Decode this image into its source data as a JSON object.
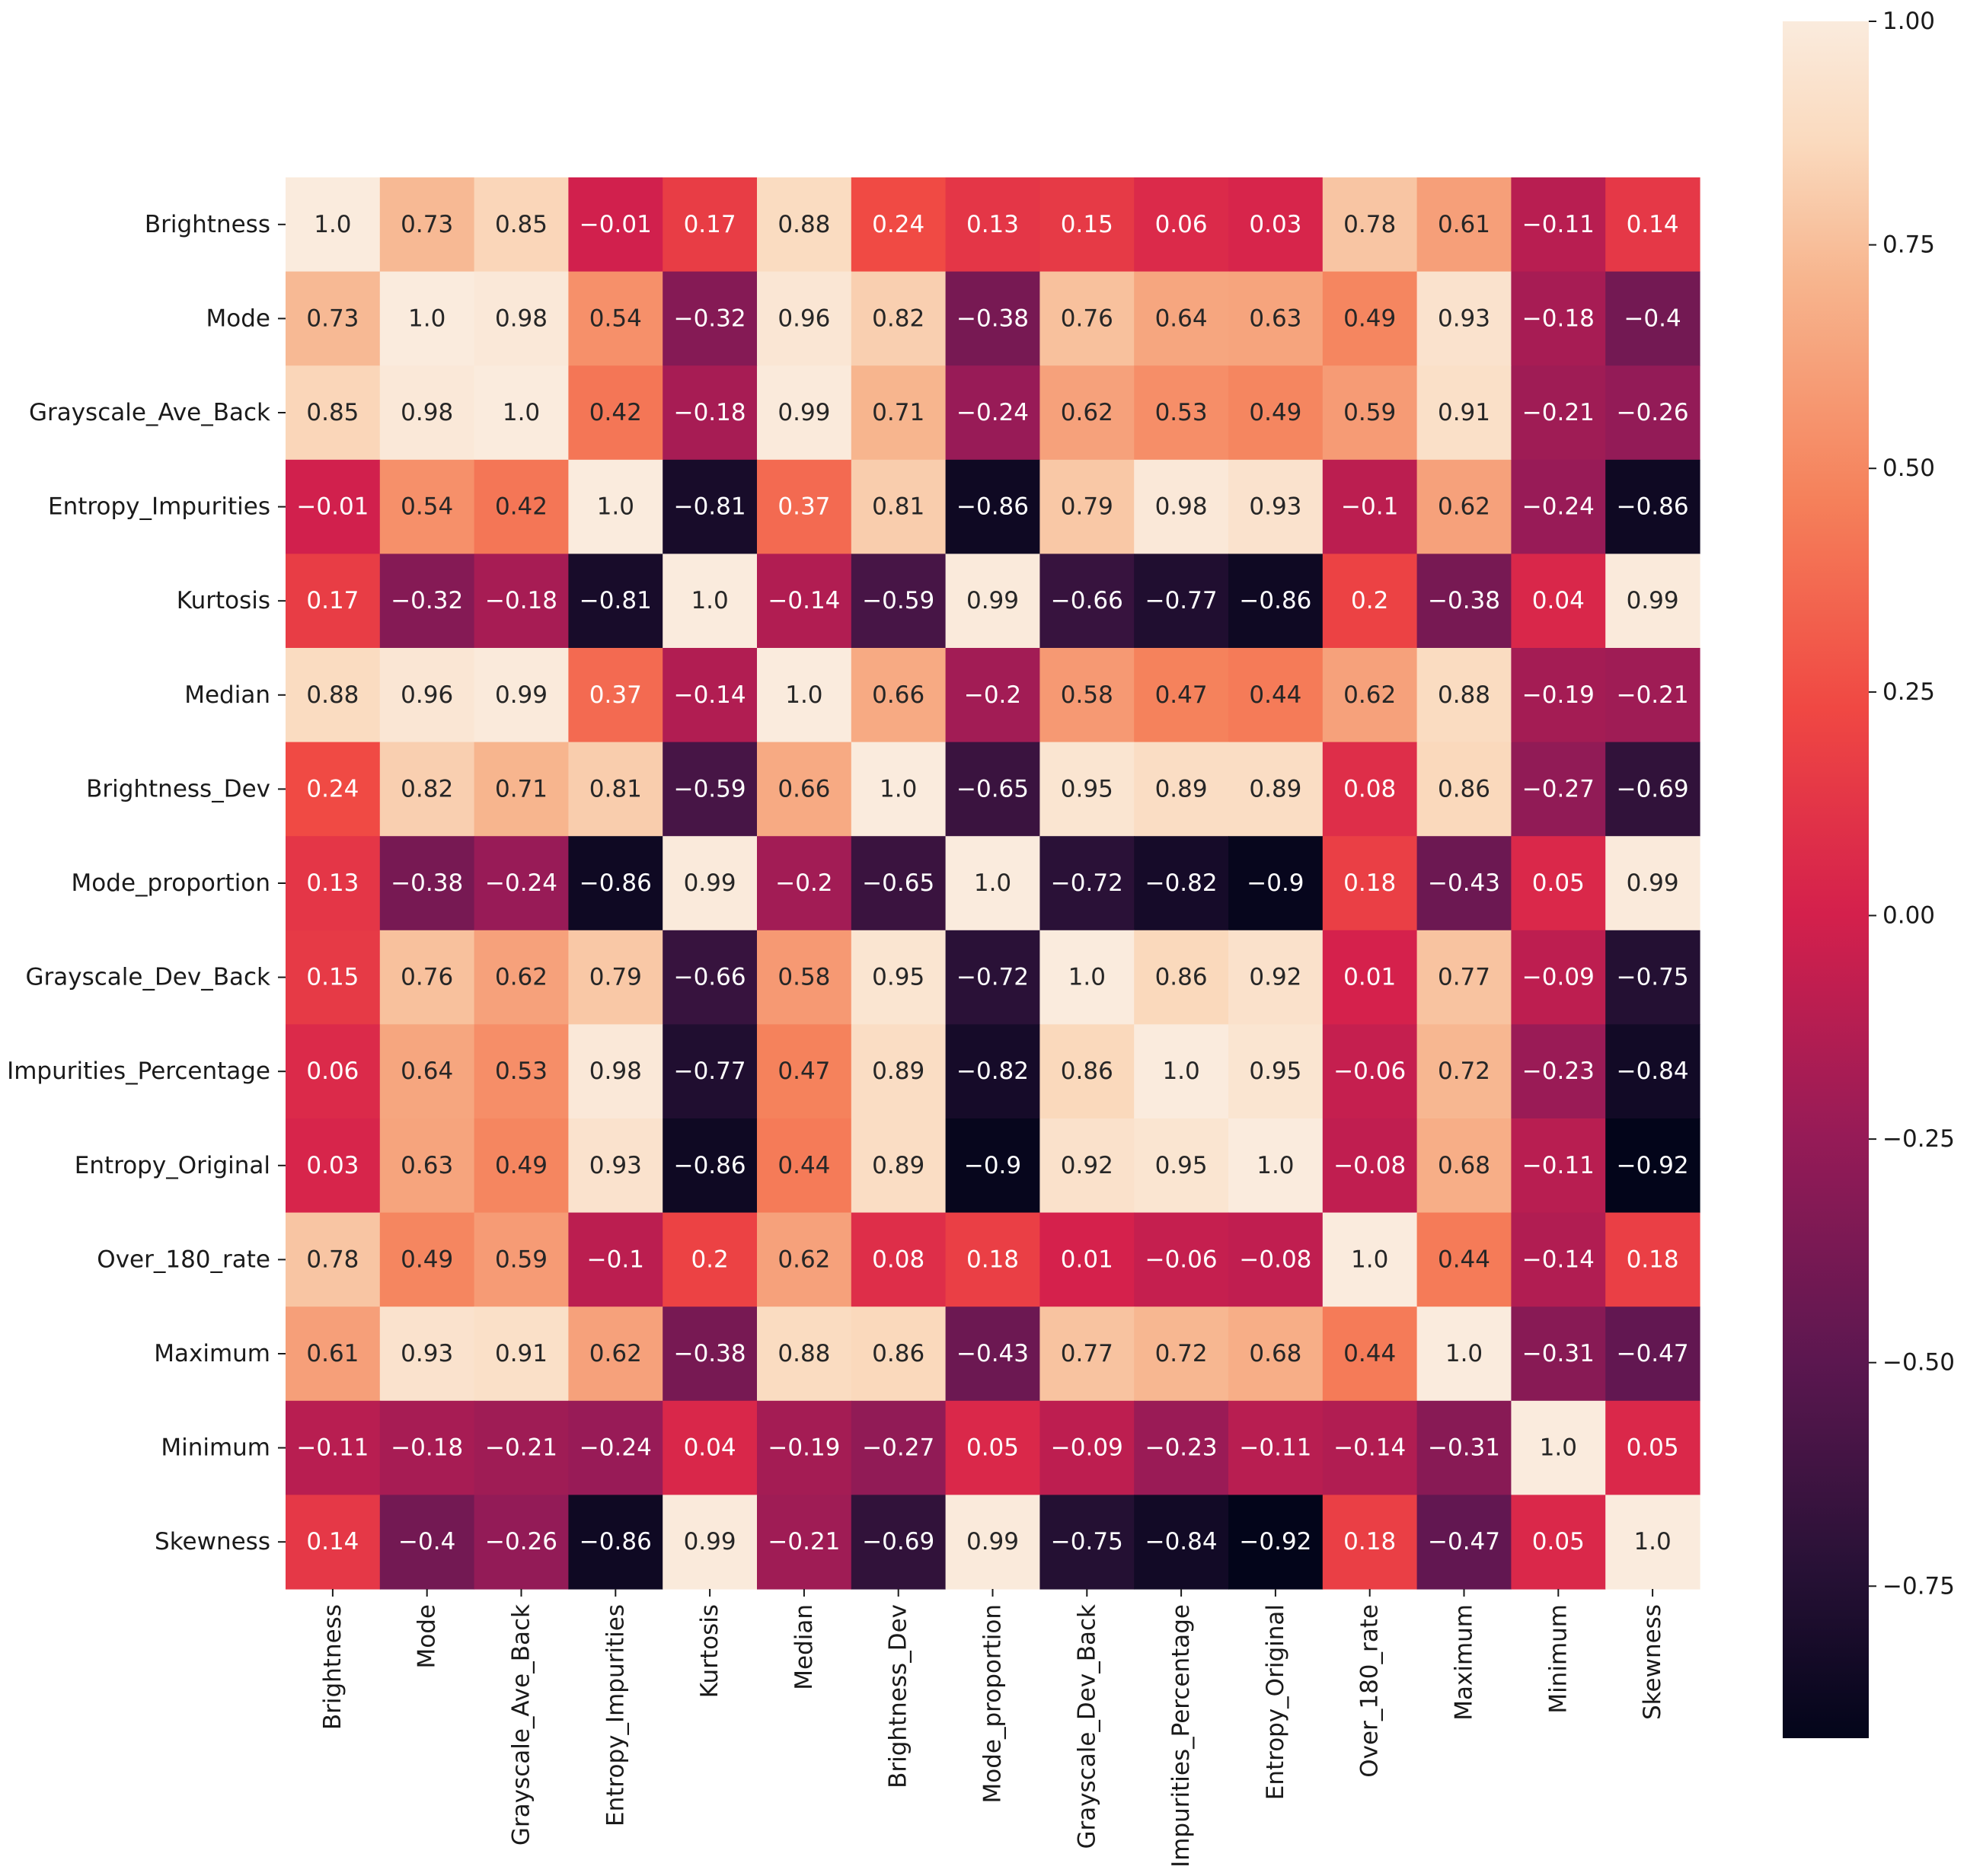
{
  "chart_data": {
    "type": "heatmap",
    "title": "",
    "xlabel": "",
    "ylabel": "",
    "labels": [
      "Brightness",
      "Mode",
      "Grayscale_Ave_Back",
      "Entropy_Impurities",
      "Kurtosis",
      "Median",
      "Brightness_Dev",
      "Mode_proportion",
      "Grayscale_Dev_Back",
      "Impurities_Percentage",
      "Entropy_Original",
      "Over_180_rate",
      "Maximum",
      "Minimum",
      "Skewness"
    ],
    "values": [
      [
        1.0,
        0.73,
        0.85,
        -0.01,
        0.17,
        0.88,
        0.24,
        0.13,
        0.15,
        0.06,
        0.03,
        0.78,
        0.61,
        -0.11,
        0.14
      ],
      [
        0.73,
        1.0,
        0.98,
        0.54,
        -0.32,
        0.96,
        0.82,
        -0.38,
        0.76,
        0.64,
        0.63,
        0.49,
        0.93,
        -0.18,
        -0.4
      ],
      [
        0.85,
        0.98,
        1.0,
        0.42,
        -0.18,
        0.99,
        0.71,
        -0.24,
        0.62,
        0.53,
        0.49,
        0.59,
        0.91,
        -0.21,
        -0.26
      ],
      [
        -0.01,
        0.54,
        0.42,
        1.0,
        -0.81,
        0.37,
        0.81,
        -0.86,
        0.79,
        0.98,
        0.93,
        -0.1,
        0.62,
        -0.24,
        -0.86
      ],
      [
        0.17,
        -0.32,
        -0.18,
        -0.81,
        1.0,
        -0.14,
        -0.59,
        0.99,
        -0.66,
        -0.77,
        -0.86,
        0.2,
        -0.38,
        0.04,
        0.99
      ],
      [
        0.88,
        0.96,
        0.99,
        0.37,
        -0.14,
        1.0,
        0.66,
        -0.2,
        0.58,
        0.47,
        0.44,
        0.62,
        0.88,
        -0.19,
        -0.21
      ],
      [
        0.24,
        0.82,
        0.71,
        0.81,
        -0.59,
        0.66,
        1.0,
        -0.65,
        0.95,
        0.89,
        0.89,
        0.08,
        0.86,
        -0.27,
        -0.69
      ],
      [
        0.13,
        -0.38,
        -0.24,
        -0.86,
        0.99,
        -0.2,
        -0.65,
        1.0,
        -0.72,
        -0.82,
        -0.9,
        0.18,
        -0.43,
        0.05,
        0.99
      ],
      [
        0.15,
        0.76,
        0.62,
        0.79,
        -0.66,
        0.58,
        0.95,
        -0.72,
        1.0,
        0.86,
        0.92,
        0.01,
        0.77,
        -0.09,
        -0.75
      ],
      [
        0.06,
        0.64,
        0.53,
        0.98,
        -0.77,
        0.47,
        0.89,
        -0.82,
        0.86,
        1.0,
        0.95,
        -0.06,
        0.72,
        -0.23,
        -0.84
      ],
      [
        0.03,
        0.63,
        0.49,
        0.93,
        -0.86,
        0.44,
        0.89,
        -0.9,
        0.92,
        0.95,
        1.0,
        -0.08,
        0.68,
        -0.11,
        -0.92
      ],
      [
        0.78,
        0.49,
        0.59,
        -0.1,
        0.2,
        0.62,
        0.08,
        0.18,
        0.01,
        -0.06,
        -0.08,
        1.0,
        0.44,
        -0.14,
        0.18
      ],
      [
        0.61,
        0.93,
        0.91,
        0.62,
        -0.38,
        0.88,
        0.86,
        -0.43,
        0.77,
        0.72,
        0.68,
        0.44,
        1.0,
        -0.31,
        -0.47
      ],
      [
        -0.11,
        -0.18,
        -0.21,
        -0.24,
        0.04,
        -0.19,
        -0.27,
        0.05,
        -0.09,
        -0.23,
        -0.11,
        -0.14,
        -0.31,
        1.0,
        0.05
      ],
      [
        0.14,
        -0.4,
        -0.26,
        -0.86,
        0.99,
        -0.21,
        -0.69,
        0.99,
        -0.75,
        -0.84,
        -0.92,
        0.18,
        -0.47,
        0.05,
        1.0
      ]
    ],
    "value_labels": [
      [
        "1.0",
        "0.73",
        "0.85",
        "−0.01",
        "0.17",
        "0.88",
        "0.24",
        "0.13",
        "0.15",
        "0.06",
        "0.03",
        "0.78",
        "0.61",
        "−0.11",
        "0.14"
      ],
      [
        "0.73",
        "1.0",
        "0.98",
        "0.54",
        "−0.32",
        "0.96",
        "0.82",
        "−0.38",
        "0.76",
        "0.64",
        "0.63",
        "0.49",
        "0.93",
        "−0.18",
        "−0.4"
      ],
      [
        "0.85",
        "0.98",
        "1.0",
        "0.42",
        "−0.18",
        "0.99",
        "0.71",
        "−0.24",
        "0.62",
        "0.53",
        "0.49",
        "0.59",
        "0.91",
        "−0.21",
        "−0.26"
      ],
      [
        "−0.01",
        "0.54",
        "0.42",
        "1.0",
        "−0.81",
        "0.37",
        "0.81",
        "−0.86",
        "0.79",
        "0.98",
        "0.93",
        "−0.1",
        "0.62",
        "−0.24",
        "−0.86"
      ],
      [
        "0.17",
        "−0.32",
        "−0.18",
        "−0.81",
        "1.0",
        "−0.14",
        "−0.59",
        "0.99",
        "−0.66",
        "−0.77",
        "−0.86",
        "0.2",
        "−0.38",
        "0.04",
        "0.99"
      ],
      [
        "0.88",
        "0.96",
        "0.99",
        "0.37",
        "−0.14",
        "1.0",
        "0.66",
        "−0.2",
        "0.58",
        "0.47",
        "0.44",
        "0.62",
        "0.88",
        "−0.19",
        "−0.21"
      ],
      [
        "0.24",
        "0.82",
        "0.71",
        "0.81",
        "−0.59",
        "0.66",
        "1.0",
        "−0.65",
        "0.95",
        "0.89",
        "0.89",
        "0.08",
        "0.86",
        "−0.27",
        "−0.69"
      ],
      [
        "0.13",
        "−0.38",
        "−0.24",
        "−0.86",
        "0.99",
        "−0.2",
        "−0.65",
        "1.0",
        "−0.72",
        "−0.82",
        "−0.9",
        "0.18",
        "−0.43",
        "0.05",
        "0.99"
      ],
      [
        "0.15",
        "0.76",
        "0.62",
        "0.79",
        "−0.66",
        "0.58",
        "0.95",
        "−0.72",
        "1.0",
        "0.86",
        "0.92",
        "0.01",
        "0.77",
        "−0.09",
        "−0.75"
      ],
      [
        "0.06",
        "0.64",
        "0.53",
        "0.98",
        "−0.77",
        "0.47",
        "0.89",
        "−0.82",
        "0.86",
        "1.0",
        "0.95",
        "−0.06",
        "0.72",
        "−0.23",
        "−0.84"
      ],
      [
        "0.03",
        "0.63",
        "0.49",
        "0.93",
        "−0.86",
        "0.44",
        "0.89",
        "−0.9",
        "0.92",
        "0.95",
        "1.0",
        "−0.08",
        "0.68",
        "−0.11",
        "−0.92"
      ],
      [
        "0.78",
        "0.49",
        "0.59",
        "−0.1",
        "0.2",
        "0.62",
        "0.08",
        "0.18",
        "0.01",
        "−0.06",
        "−0.08",
        "1.0",
        "0.44",
        "−0.14",
        "0.18"
      ],
      [
        "0.61",
        "0.93",
        "0.91",
        "0.62",
        "−0.38",
        "0.88",
        "0.86",
        "−0.43",
        "0.77",
        "0.72",
        "0.68",
        "0.44",
        "1.0",
        "−0.31",
        "−0.47"
      ],
      [
        "−0.11",
        "−0.18",
        "−0.21",
        "−0.24",
        "0.04",
        "−0.19",
        "−0.27",
        "0.05",
        "−0.09",
        "−0.23",
        "−0.11",
        "−0.14",
        "−0.31",
        "1.0",
        "0.05"
      ],
      [
        "0.14",
        "−0.4",
        "−0.26",
        "−0.86",
        "0.99",
        "−0.21",
        "−0.69",
        "0.99",
        "−0.75",
        "−0.84",
        "−0.92",
        "0.18",
        "−0.47",
        "0.05",
        "1.0"
      ]
    ],
    "colormap": "rocket",
    "colorbar": {
      "vmin": -0.92,
      "vmax": 1.0,
      "ticks": [
        1.0,
        0.75,
        0.5,
        0.25,
        0.0,
        -0.25,
        -0.5,
        -0.75
      ],
      "tick_labels": [
        "1.00",
        "0.75",
        "0.50",
        "0.25",
        "0.00",
        "−0.25",
        "−0.50",
        "−0.75"
      ]
    },
    "grid": false,
    "legend": "colorbar-right"
  }
}
